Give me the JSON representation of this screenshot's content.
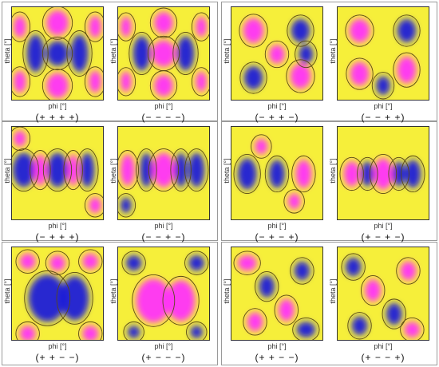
{
  "figure": {
    "axis_x_label": "phi [°]",
    "axis_y_label": "theta [°]",
    "colors": {
      "negative": "#1a1adc",
      "zero": "#f6ef3a",
      "positive": "#ff2dff",
      "contour": "#5a4a14"
    },
    "panels": [
      {
        "id": "p1",
        "label": "(+ + + +)",
        "pattern": "rings"
      },
      {
        "id": "p2",
        "label": "(− − − −)",
        "pattern": "rings-inverse"
      },
      {
        "id": "p3",
        "label": "(− + + −)",
        "pattern": "blobs"
      },
      {
        "id": "p4",
        "label": "(− − + +)",
        "pattern": "blobs-alt"
      },
      {
        "id": "p5",
        "label": "(− + + +)",
        "pattern": "bands"
      },
      {
        "id": "p6",
        "label": "(− − + −)",
        "pattern": "bands-inverse"
      },
      {
        "id": "p7",
        "label": "(− + − +)",
        "pattern": "bands-soft"
      },
      {
        "id": "p8",
        "label": "(+ − + −)",
        "pattern": "bands-soft-inverse"
      },
      {
        "id": "p9",
        "label": "(+ + − −)",
        "pattern": "core"
      },
      {
        "id": "p10",
        "label": "(+ − − −)",
        "pattern": "core-inverse"
      },
      {
        "id": "p11",
        "label": "(+ + − −)",
        "pattern": "diagonal"
      },
      {
        "id": "p12",
        "label": "(+ − − +)",
        "pattern": "diagonal-inverse"
      }
    ]
  }
}
